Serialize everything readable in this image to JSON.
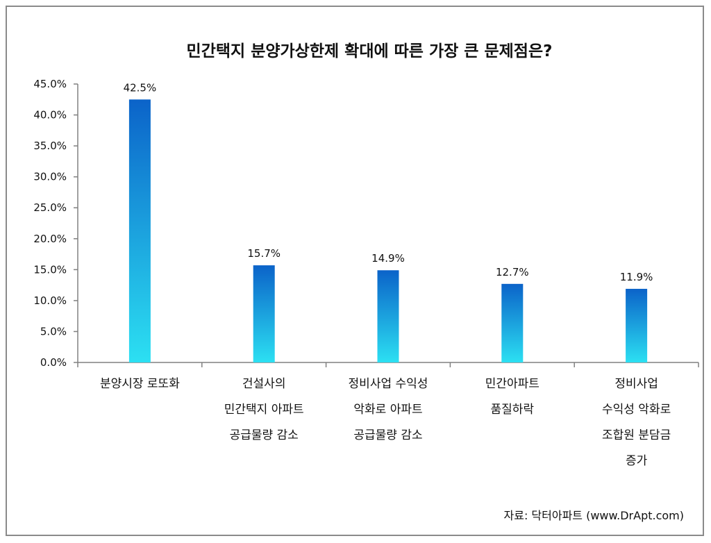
{
  "chart_data": {
    "type": "bar",
    "title": "민간택지 분양가상한제 확대에 따른 가장 큰 문제점은?",
    "categories": [
      [
        "분양시장 로또화"
      ],
      [
        "건설사의",
        "민간택지 아파트",
        "공급물량 감소"
      ],
      [
        "정비사업 수익성",
        "악화로 아파트",
        "공급물량 감소"
      ],
      [
        "민간아파트",
        "품질하락"
      ],
      [
        "정비사업",
        "수익성 악화로",
        "조합원 분담금",
        "증가"
      ]
    ],
    "values": [
      42.5,
      15.7,
      14.9,
      12.7,
      11.9
    ],
    "value_labels": [
      "42.5%",
      "15.7%",
      "14.9%",
      "12.7%",
      "11.9%"
    ],
    "y_ticks": [
      "0.0%",
      "5.0%",
      "10.0%",
      "15.0%",
      "20.0%",
      "25.0%",
      "30.0%",
      "35.0%",
      "40.0%",
      "45.0%"
    ],
    "ylim": [
      0,
      45
    ],
    "grid": false,
    "colors": {
      "bar_top": "#0b63c9",
      "bar_bottom": "#2ce0f2",
      "axis": "#808080"
    }
  },
  "source": "자료: 닥터아파트 (www.DrApt.com)"
}
